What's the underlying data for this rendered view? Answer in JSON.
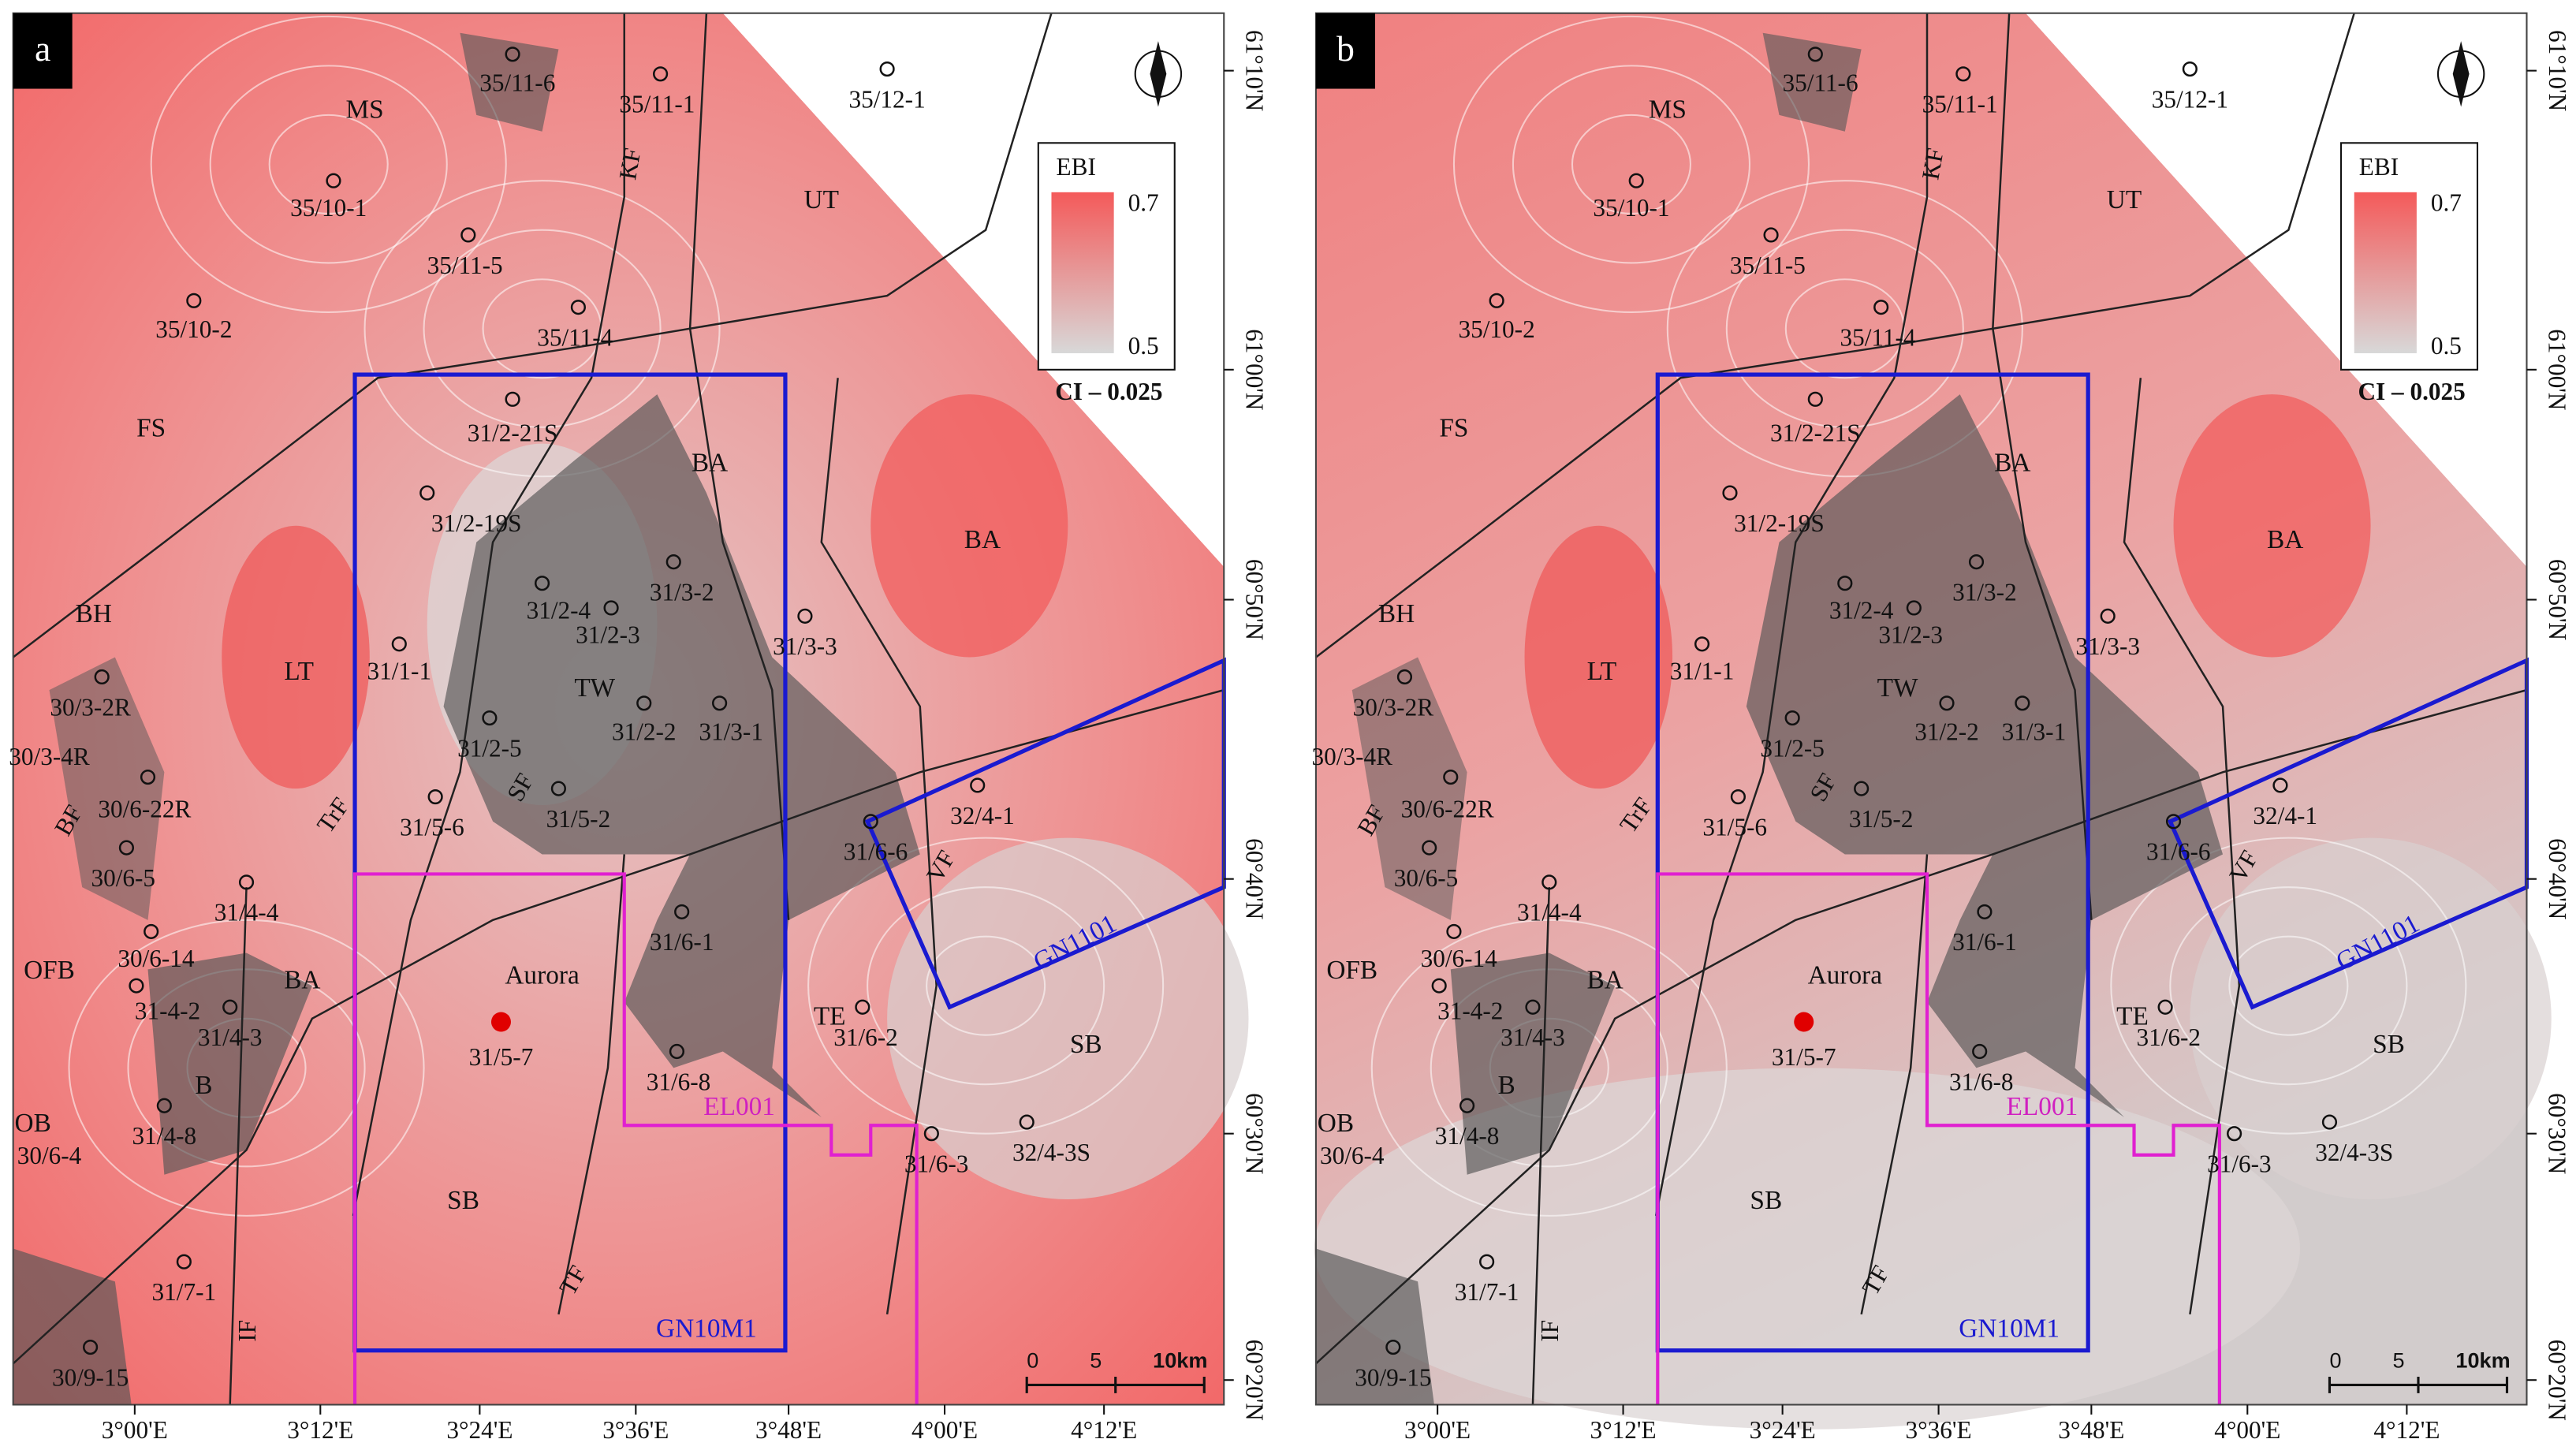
{
  "panels": [
    {
      "label": "a"
    },
    {
      "label": "b"
    }
  ],
  "map": {
    "wells": [
      "35/11-6",
      "35/11-1",
      "35/12-1",
      "35/10-1",
      "35/11-5",
      "35/10-2",
      "35/11-4",
      "31/2-21S",
      "31/2-19S",
      "31/2-4",
      "31/2-3",
      "31/3-2",
      "31/3-3",
      "31/1-1",
      "30/3-2R",
      "30/3-4R",
      "31/2-5",
      "31/2-2",
      "31/3-1",
      "30/6-22R",
      "31/5-6",
      "31/5-2",
      "31/6-6",
      "32/4-1",
      "30/6-5",
      "31/4-4",
      "30/6-14",
      "31/6-1",
      "31-4-2",
      "31/4-3",
      "31/6-2",
      "31/5-7",
      "31/6-8",
      "31/4-8",
      "30/6-4",
      "31/6-3",
      "32/4-3S",
      "31/7-1",
      "30/9-15"
    ],
    "regions": [
      "MS",
      "UT",
      "FS",
      "BA",
      "BA",
      "BH",
      "LT",
      "TW",
      "OFB",
      "BA",
      "B",
      "TE",
      "SB",
      "OB",
      "SB"
    ],
    "faults": [
      "KF",
      "SF",
      "TrF",
      "BF",
      "VF",
      "TF",
      "IF"
    ],
    "blocks": [
      "GN10M1",
      "GN1101",
      "EL001",
      "Aurora"
    ],
    "legend": {
      "title": "EBI",
      "max": 0.7,
      "min": 0.5,
      "contour_interval": "CI – 0.025"
    },
    "scale_bar": [
      "0",
      "5",
      "10km"
    ],
    "longitude_ticks": [
      "3°00'E",
      "3°12'E",
      "3°24'E",
      "3°36'E",
      "3°48'E",
      "4°00'E",
      "4°12'E"
    ],
    "latitude_ticks": [
      "61°10'N",
      "61°00'N",
      "60°50'N",
      "60°40'N",
      "60°30'N",
      "60°20'N"
    ]
  }
}
